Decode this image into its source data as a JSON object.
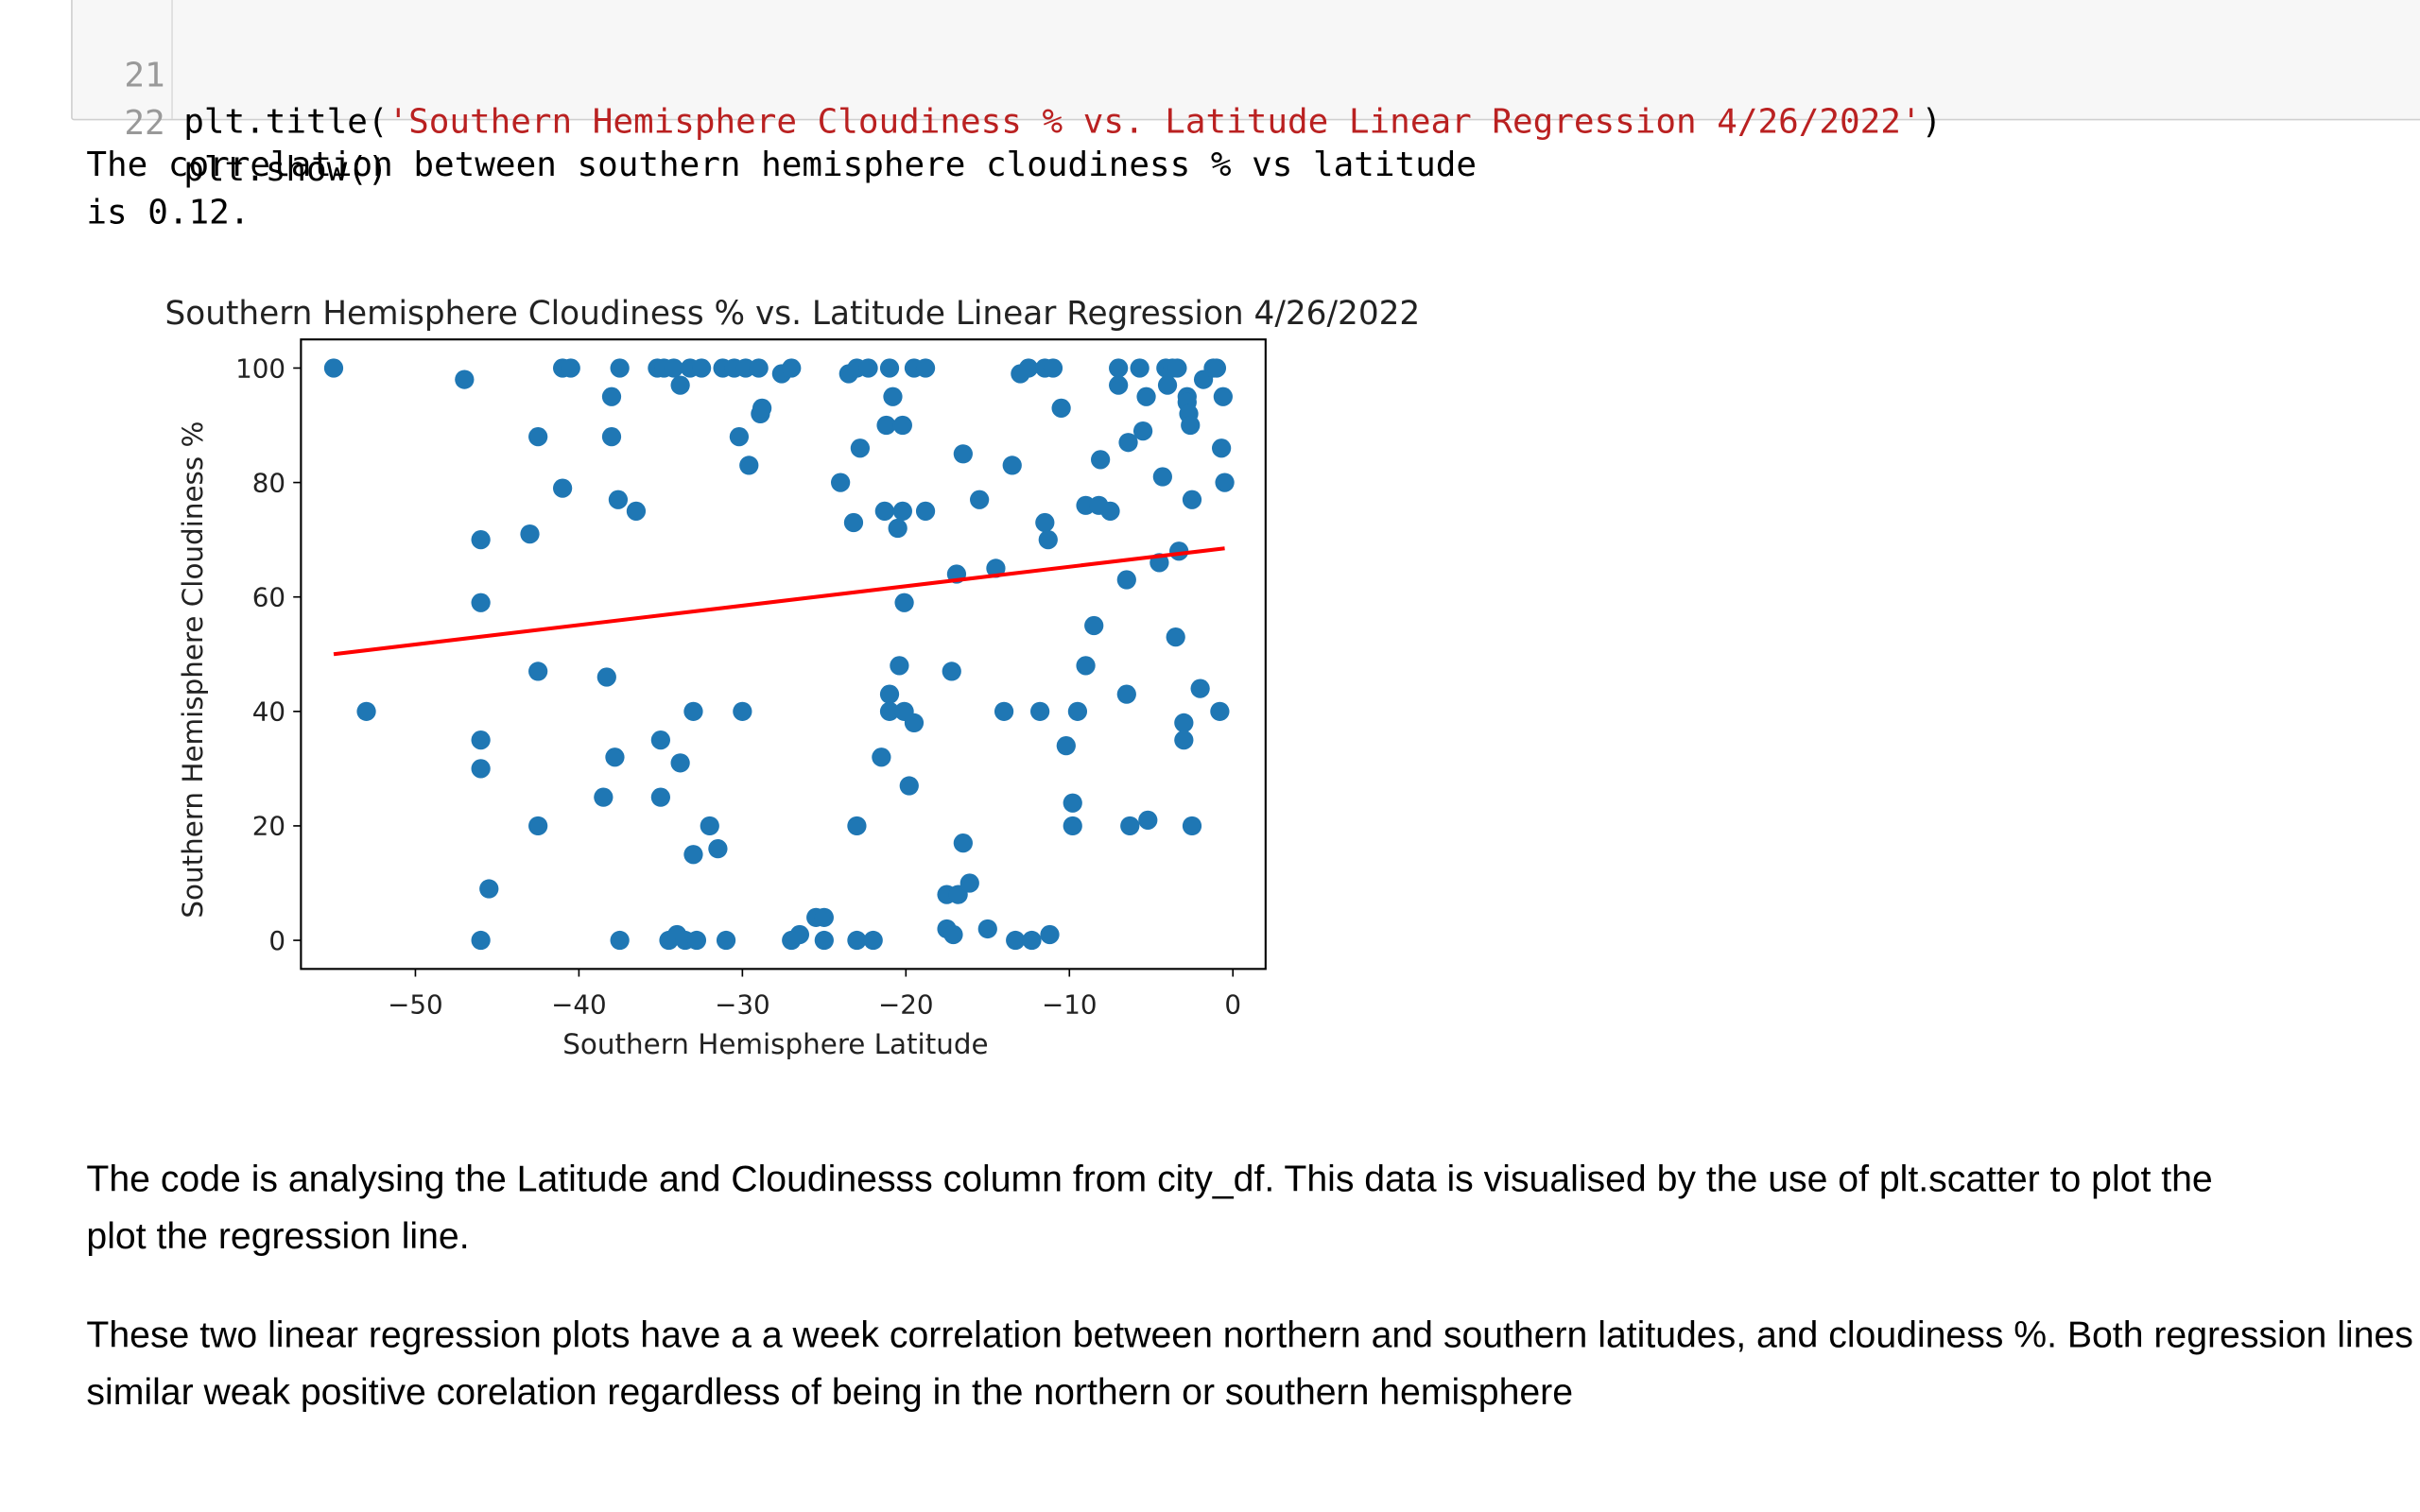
{
  "code_cell": {
    "lines": [
      {
        "number": "21",
        "prefix": "plt.title(",
        "string": "'Southern Hemisphere Cloudiness % vs. Latitude Linear Regression 4/26/2022'",
        "suffix": ")"
      },
      {
        "number": "22",
        "prefix": "plt.show()",
        "string": "",
        "suffix": ""
      }
    ]
  },
  "output_text": "The correlation between southern hemisphere cloudiness % vs latitude\nis 0.12.",
  "chart_data": {
    "type": "scatter",
    "title": "Southern Hemisphere Cloudiness % vs. Latitude Linear Regression 4/26/2022",
    "xlabel": "Southern Hemisphere Latitude",
    "ylabel": "Southern Hemisphere Cloudiness %",
    "xlim": [
      -57,
      2
    ],
    "ylim": [
      -5,
      105
    ],
    "xticks": [
      -50,
      -40,
      -30,
      -20,
      -10,
      0
    ],
    "yticks": [
      0,
      20,
      40,
      60,
      80,
      100
    ],
    "grid": false,
    "point_color": "#1f77b4",
    "points": [
      [
        -55,
        100
      ],
      [
        -53,
        40
      ],
      [
        -47,
        98
      ],
      [
        -46,
        70
      ],
      [
        -46,
        59
      ],
      [
        -46,
        35
      ],
      [
        -46,
        30
      ],
      [
        -46,
        0
      ],
      [
        -45.5,
        9
      ],
      [
        -43,
        71
      ],
      [
        -42.5,
        88
      ],
      [
        -42.5,
        47
      ],
      [
        -42.5,
        20
      ],
      [
        -41,
        79
      ],
      [
        -41,
        100
      ],
      [
        -40.5,
        100
      ],
      [
        -38.5,
        25
      ],
      [
        -38.3,
        46
      ],
      [
        -38,
        95
      ],
      [
        -38,
        88
      ],
      [
        -37.8,
        32
      ],
      [
        -37.6,
        77
      ],
      [
        -37.5,
        100
      ],
      [
        -37.5,
        0
      ],
      [
        -36.5,
        75
      ],
      [
        -35.2,
        100
      ],
      [
        -35,
        35
      ],
      [
        -35,
        25
      ],
      [
        -34.8,
        100
      ],
      [
        -34.5,
        0
      ],
      [
        -34.2,
        100
      ],
      [
        -34,
        1
      ],
      [
        -33.8,
        97
      ],
      [
        -33.8,
        31
      ],
      [
        -33.5,
        0
      ],
      [
        -33.2,
        100
      ],
      [
        -33,
        40
      ],
      [
        -33,
        15
      ],
      [
        -32.8,
        0
      ],
      [
        -32.5,
        100
      ],
      [
        -32,
        20
      ],
      [
        -31.5,
        16
      ],
      [
        -31.2,
        100
      ],
      [
        -31,
        0
      ],
      [
        -30.5,
        100
      ],
      [
        -30.2,
        88
      ],
      [
        -30,
        40
      ],
      [
        -29.8,
        100
      ],
      [
        -29.6,
        83
      ],
      [
        -29,
        100
      ],
      [
        -28.9,
        92
      ],
      [
        -28.8,
        93
      ],
      [
        -27.6,
        99
      ],
      [
        -27,
        100
      ],
      [
        -27,
        0
      ],
      [
        -26.5,
        1
      ],
      [
        -25.5,
        4
      ],
      [
        -25,
        0
      ],
      [
        -25,
        4
      ],
      [
        -24,
        80
      ],
      [
        -23.5,
        99
      ],
      [
        -23.2,
        73
      ],
      [
        -23,
        100
      ],
      [
        -23,
        20
      ],
      [
        -23,
        0
      ],
      [
        -22.8,
        86
      ],
      [
        -22.3,
        100
      ],
      [
        -22,
        0
      ],
      [
        -21.5,
        32
      ],
      [
        -21.3,
        75
      ],
      [
        -21.2,
        90
      ],
      [
        -21,
        100
      ],
      [
        -21,
        43
      ],
      [
        -21,
        40
      ],
      [
        -20.8,
        95
      ],
      [
        -20.5,
        72
      ],
      [
        -20.4,
        48
      ],
      [
        -20.2,
        75
      ],
      [
        -20.2,
        90
      ],
      [
        -20.1,
        59
      ],
      [
        -20.1,
        40
      ],
      [
        -19.8,
        27
      ],
      [
        -19.5,
        38
      ],
      [
        -19.5,
        100
      ],
      [
        -18.8,
        100
      ],
      [
        -18.8,
        75
      ],
      [
        -17.5,
        8
      ],
      [
        -17.5,
        2
      ],
      [
        -17.2,
        47
      ],
      [
        -17.1,
        1
      ],
      [
        -16.9,
        64
      ],
      [
        -16.8,
        8
      ],
      [
        -16.5,
        85
      ],
      [
        -16.5,
        17
      ],
      [
        -16.1,
        10
      ],
      [
        -15.5,
        77
      ],
      [
        -15,
        2
      ],
      [
        -14.5,
        65
      ],
      [
        -14,
        40
      ],
      [
        -13.5,
        83
      ],
      [
        -13.3,
        0
      ],
      [
        -13,
        99
      ],
      [
        -12.5,
        100
      ],
      [
        -12.3,
        0
      ],
      [
        -11.8,
        40
      ],
      [
        -11.5,
        73
      ],
      [
        -11.5,
        100
      ],
      [
        -11.3,
        70
      ],
      [
        -11.2,
        1
      ],
      [
        -11,
        100
      ],
      [
        -10.5,
        93
      ],
      [
        -10.2,
        34
      ],
      [
        -9.8,
        24
      ],
      [
        -9.8,
        20
      ],
      [
        -9.5,
        40
      ],
      [
        -9,
        76
      ],
      [
        -9,
        48
      ],
      [
        -8.5,
        55
      ],
      [
        -8.2,
        76
      ],
      [
        -8.1,
        84
      ],
      [
        -7.5,
        75
      ],
      [
        -7,
        100
      ],
      [
        -7,
        97
      ],
      [
        -6.5,
        63
      ],
      [
        -6.5,
        43
      ],
      [
        -6.4,
        87
      ],
      [
        -6.3,
        20
      ],
      [
        -5.7,
        100
      ],
      [
        -5.5,
        89
      ],
      [
        -5.3,
        95
      ],
      [
        -5.2,
        21
      ],
      [
        -4.5,
        66
      ],
      [
        -4.3,
        81
      ],
      [
        -4.1,
        100
      ],
      [
        -4,
        97
      ],
      [
        -3.7,
        100
      ],
      [
        -3.5,
        53
      ],
      [
        -3.4,
        100
      ],
      [
        -3.3,
        68
      ],
      [
        -3,
        38
      ],
      [
        -3,
        35
      ],
      [
        -2.8,
        95
      ],
      [
        -2.8,
        94
      ],
      [
        -2.7,
        92
      ],
      [
        -2.6,
        90
      ],
      [
        -2.5,
        77
      ],
      [
        -2.5,
        20
      ],
      [
        -2,
        44
      ],
      [
        -1.8,
        98
      ],
      [
        -1.2,
        100
      ],
      [
        -1,
        100
      ],
      [
        -0.8,
        40
      ],
      [
        -0.7,
        86
      ],
      [
        -0.6,
        95
      ],
      [
        -0.5,
        80
      ]
    ],
    "regression_line": {
      "x": [
        -55,
        -0.5
      ],
      "y": [
        50,
        68.5
      ],
      "color": "#ff0000"
    }
  },
  "markdown": {
    "paragraph_1": [
      "The code is analysing the Latitude and Cloudinesss column from city_df. This data is visualised by the use of plt.scatter to plot the",
      "plot the regression line."
    ],
    "paragraph_2": [
      "These two linear regression plots have a a week correlation between northern and southern latitudes, and cloudiness %. Both regression lines show a",
      "similar weak positive corelation regardless of being in the northern or southern hemisphere"
    ]
  }
}
